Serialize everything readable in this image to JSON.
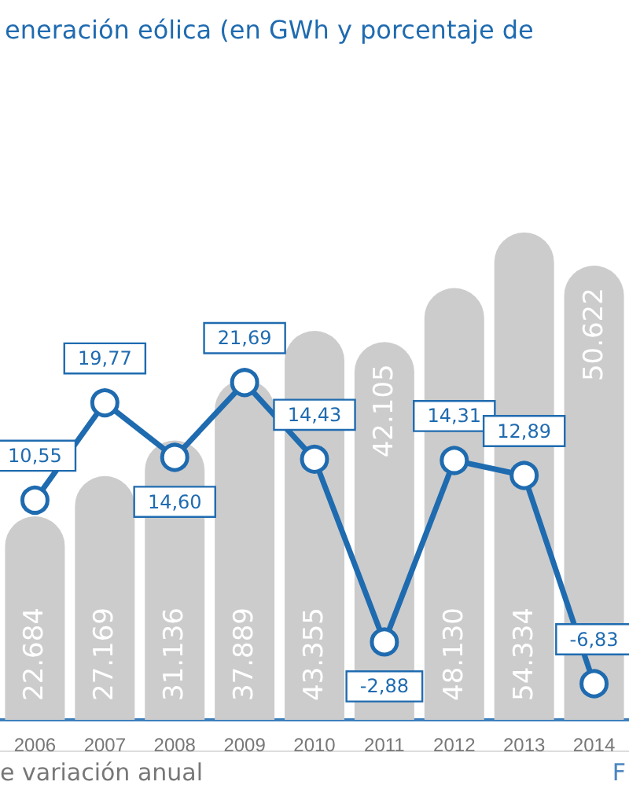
{
  "chart_data": {
    "type": "bar",
    "title": "eneración eólica (en GWh y porcentaje de",
    "categories": [
      "2006",
      "2007",
      "2008",
      "2009",
      "2010",
      "2011",
      "2012",
      "2013",
      "2014"
    ],
    "series": [
      {
        "color": "#cccccc",
        "values": [
          22684,
          27169,
          31136,
          37889,
          43355,
          42105,
          48130,
          54334,
          50622
        ],
        "value_labels": [
          "22.684",
          "27.169",
          "31.136",
          "37.889",
          "43.355",
          "42.105",
          "48.130",
          "54.334",
          "50.622"
        ]
      },
      {
        "type": "line",
        "axis": "y2",
        "color": "#1f6bb0",
        "values": [
          10.55,
          19.77,
          14.6,
          21.69,
          14.43,
          -2.88,
          14.31,
          12.89,
          -6.83
        ],
        "value_labels": [
          "10,55",
          "19,77",
          "14,60",
          "21,69",
          "14,43",
          "-2,88",
          "14,31",
          "12,89",
          "-6,83"
        ]
      }
    ],
    "marker": "circle",
    "line_style": "solid",
    "tick_labels": "x",
    "annotations": [
      "e variación anual",
      "F"
    ]
  }
}
